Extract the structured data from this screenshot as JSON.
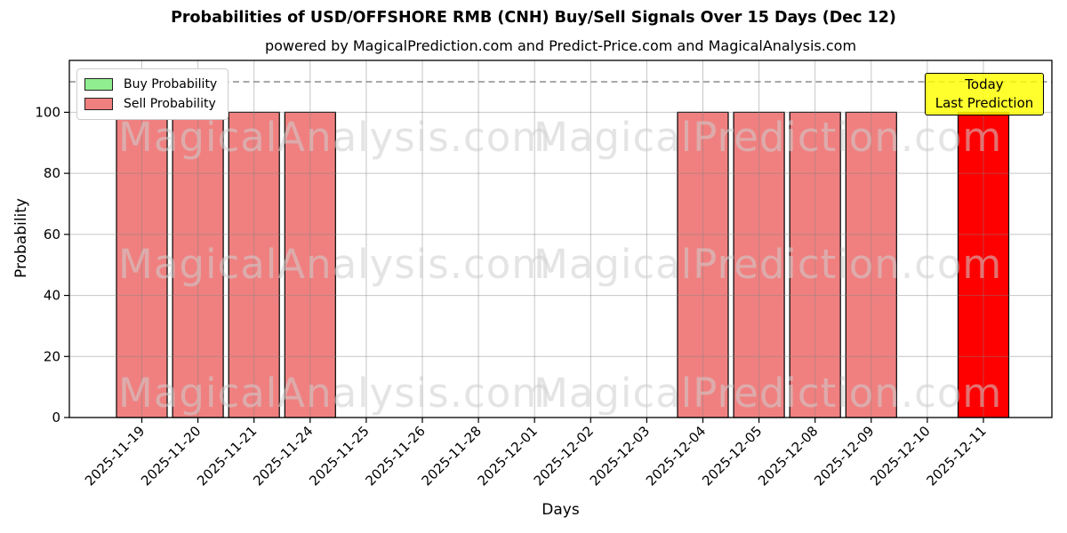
{
  "page": {
    "background": "#ffffff"
  },
  "chart_data": {
    "type": "bar",
    "title": "Probabilities of USD/OFFSHORE RMB (CNH) Buy/Sell Signals Over 15 Days (Dec 12)",
    "subtitle": "powered by MagicalPrediction.com and Predict-Price.com and MagicalAnalysis.com",
    "xlabel": "Days",
    "ylabel": "Probability",
    "categories": [
      "2025-11-19",
      "2025-11-20",
      "2025-11-21",
      "2025-11-24",
      "2025-11-25",
      "2025-11-26",
      "2025-11-28",
      "2025-12-01",
      "2025-12-02",
      "2025-12-03",
      "2025-12-04",
      "2025-12-05",
      "2025-12-08",
      "2025-12-09",
      "2025-12-10",
      "2025-12-11"
    ],
    "series": [
      {
        "name": "Buy Probability",
        "color": "#90ee90",
        "values": [
          0,
          0,
          0,
          0,
          0,
          0,
          0,
          0,
          0,
          0,
          0,
          0,
          0,
          0,
          0,
          0
        ]
      },
      {
        "name": "Sell Probability",
        "color": "#f08080",
        "values": [
          100,
          100,
          100,
          100,
          0,
          0,
          0,
          0,
          0,
          0,
          100,
          100,
          100,
          100,
          0,
          0
        ]
      }
    ],
    "today_bar": {
      "category": "2025-12-11",
      "index": 15,
      "value": 100,
      "color": "#ff0000"
    },
    "yticks": [
      0,
      20,
      40,
      60,
      80,
      100
    ],
    "ylim": [
      0,
      117
    ],
    "dashed_line_y": 110,
    "dashed_line_color": "#808080",
    "grid": true,
    "grid_color": "rgba(128,128,128,0.45)",
    "bar_edge_color": "#000000",
    "legend_position": "upper left",
    "annotation": {
      "line1": "Today",
      "line2": "Last Prediction",
      "bg_color": "#ffff00"
    },
    "watermark_left": "MagicalAnalysis.com",
    "watermark_right": "MagicalPrediction.com"
  }
}
